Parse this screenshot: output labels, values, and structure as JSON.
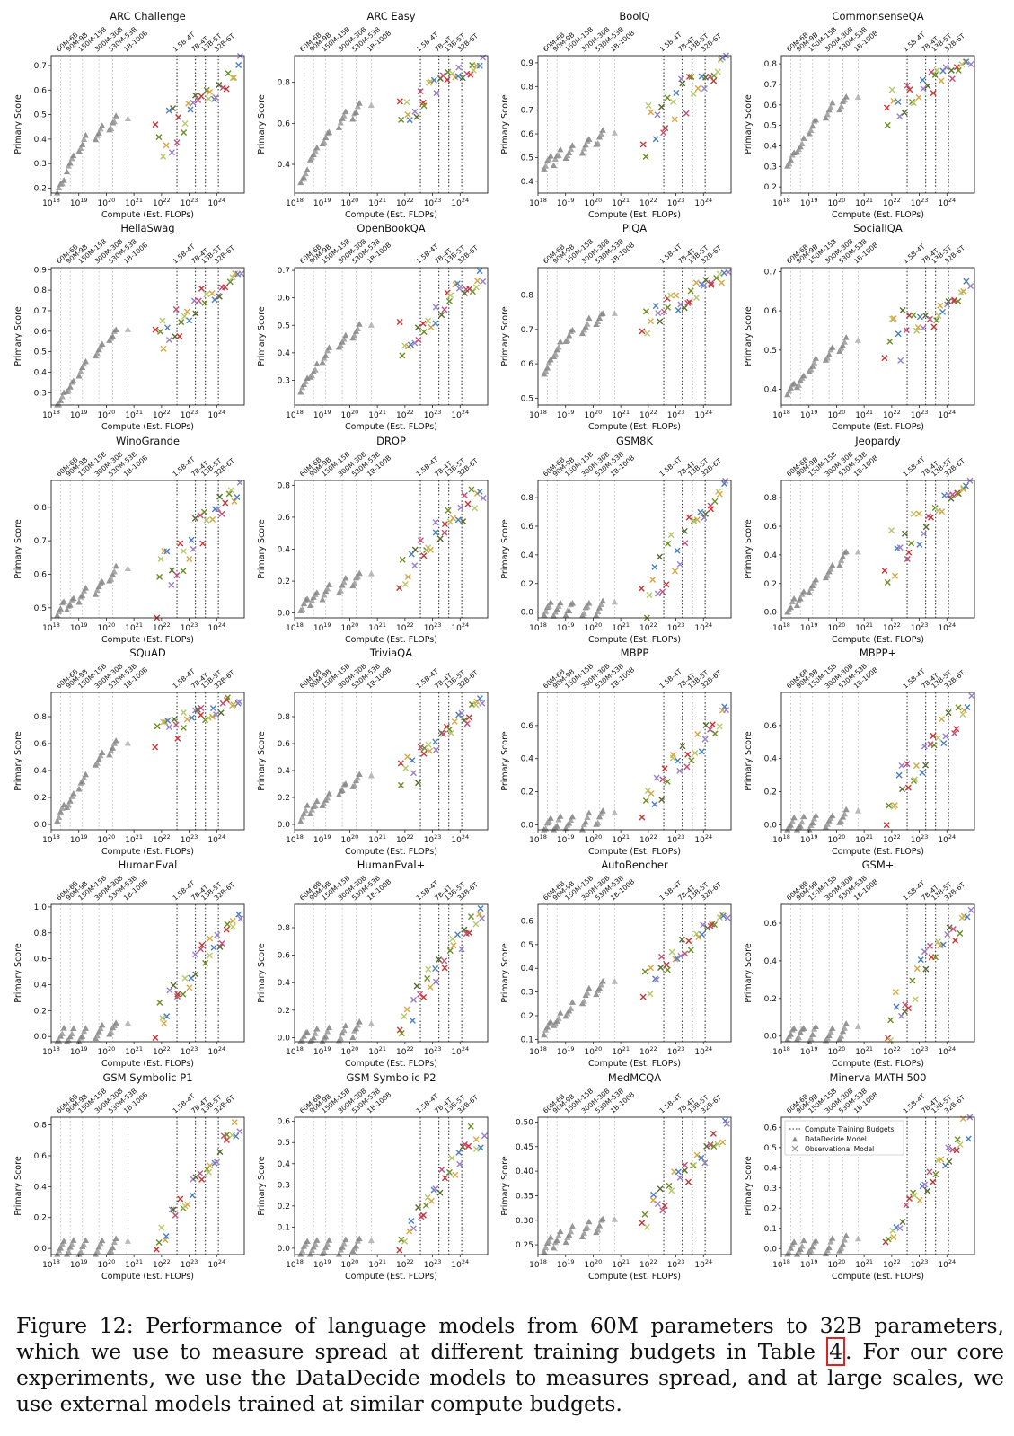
{
  "axis_text": {
    "xlabel": "Compute (Est. FLOPs)",
    "ylabel": "Primary Score",
    "x_ticks": [
      18,
      19,
      20,
      21,
      22,
      23,
      24
    ]
  },
  "budgets": [
    {
      "label": "60M-6B",
      "log_flops": 18.34
    },
    {
      "label": "90M-9B",
      "log_flops": 18.69
    },
    {
      "label": "150M-15B",
      "log_flops": 19.13
    },
    {
      "label": "300M-30B",
      "log_flops": 19.73
    },
    {
      "label": "530M-53B",
      "log_flops": 20.23
    },
    {
      "label": "1B-100B",
      "log_flops": 20.78
    },
    {
      "label": "1.5B-4T",
      "log_flops": 22.56
    },
    {
      "label": "7B-4T",
      "log_flops": 23.23
    },
    {
      "label": "13B-5T",
      "log_flops": 23.59
    },
    {
      "label": "32B-6T",
      "log_flops": 24.06
    }
  ],
  "legend": {
    "budget": "Compute Training Budgets",
    "datadecide": "DataDecide Model",
    "observational": "Observational Model"
  },
  "colors": {
    "datadecide": "#8a8a8a",
    "observational": [
      "#cc3333",
      "#6b8e23",
      "#b5c96a",
      "#d9a640",
      "#4a7fc0",
      "#9a7fc9",
      "#556b2f",
      "#c44e7a"
    ]
  },
  "chart_data": [
    {
      "type": "scatter",
      "title": "ARC Challenge",
      "xlim": [
        18,
        25
      ],
      "ylim": [
        0.18,
        0.74
      ],
      "yticks": [
        0.2,
        0.3,
        0.4,
        0.5,
        0.6,
        0.7
      ],
      "dd": [
        0.21,
        0.3,
        0.38,
        0.43,
        0.46
      ],
      "obs_start": [
        0.36,
        0.55
      ],
      "obs_end": [
        0.62,
        0.7
      ]
    },
    {
      "type": "scatter",
      "title": "ARC Easy",
      "xlim": [
        18,
        25
      ],
      "ylim": [
        0.26,
        0.93
      ],
      "yticks": [
        0.4,
        0.6,
        0.8
      ],
      "dd": [
        0.34,
        0.45,
        0.53,
        0.62,
        0.66
      ],
      "obs_start": [
        0.63,
        0.78
      ],
      "obs_end": [
        0.86,
        0.91
      ]
    },
    {
      "type": "scatter",
      "title": "BoolQ",
      "xlim": [
        18,
        25
      ],
      "ylim": [
        0.35,
        0.93
      ],
      "yticks": [
        0.4,
        0.5,
        0.6,
        0.7,
        0.8,
        0.9
      ],
      "dd": [
        0.48,
        0.5,
        0.52,
        0.55,
        0.58
      ],
      "obs_start": [
        0.58,
        0.82
      ],
      "obs_end": [
        0.86,
        0.91
      ]
    },
    {
      "type": "scatter",
      "title": "CommonsenseQA",
      "xlim": [
        18,
        25
      ],
      "ylim": [
        0.17,
        0.84
      ],
      "yticks": [
        0.2,
        0.3,
        0.4,
        0.5,
        0.6,
        0.7,
        0.8
      ],
      "dd": [
        0.33,
        0.4,
        0.5,
        0.57,
        0.61
      ],
      "obs_start": [
        0.58,
        0.76
      ],
      "obs_end": [
        0.76,
        0.8
      ]
    },
    {
      "type": "scatter",
      "title": "HellaSwag",
      "xlim": [
        18,
        25
      ],
      "ylim": [
        0.24,
        0.91
      ],
      "yticks": [
        0.3,
        0.4,
        0.5,
        0.6,
        0.7,
        0.8,
        0.9
      ],
      "dd": [
        0.26,
        0.33,
        0.42,
        0.51,
        0.58
      ],
      "obs_start": [
        0.52,
        0.74
      ],
      "obs_end": [
        0.85,
        0.89
      ]
    },
    {
      "type": "scatter",
      "title": "OpenBookQA",
      "xlim": [
        18,
        25
      ],
      "ylim": [
        0.21,
        0.71
      ],
      "yticks": [
        0.3,
        0.4,
        0.5,
        0.6,
        0.7
      ],
      "dd": [
        0.28,
        0.33,
        0.39,
        0.44,
        0.48
      ],
      "obs_start": [
        0.44,
        0.57
      ],
      "obs_end": [
        0.63,
        0.68
      ]
    },
    {
      "type": "scatter",
      "title": "PIQA",
      "xlim": [
        18,
        25
      ],
      "ylim": [
        0.48,
        0.88
      ],
      "yticks": [
        0.5,
        0.6,
        0.7,
        0.8
      ],
      "dd": [
        0.59,
        0.64,
        0.68,
        0.71,
        0.73
      ],
      "obs_start": [
        0.7,
        0.79
      ],
      "obs_end": [
        0.83,
        0.86
      ]
    },
    {
      "type": "scatter",
      "title": "SocialIQA",
      "xlim": [
        18,
        25
      ],
      "ylim": [
        0.36,
        0.71
      ],
      "yticks": [
        0.4,
        0.5,
        0.6,
        0.7
      ],
      "dd": [
        0.4,
        0.42,
        0.46,
        0.49,
        0.51
      ],
      "obs_start": [
        0.5,
        0.62
      ],
      "obs_end": [
        0.62,
        0.66
      ]
    },
    {
      "type": "scatter",
      "title": "WinoGrande",
      "xlim": [
        18,
        25
      ],
      "ylim": [
        0.47,
        0.88
      ],
      "yticks": [
        0.5,
        0.6,
        0.7,
        0.8
      ],
      "dd": [
        0.5,
        0.51,
        0.54,
        0.56,
        0.6
      ],
      "obs_start": [
        0.56,
        0.72
      ],
      "obs_end": [
        0.82,
        0.86
      ]
    },
    {
      "type": "scatter",
      "title": "DROP",
      "xlim": [
        18,
        25
      ],
      "ylim": [
        -0.03,
        0.83
      ],
      "yticks": [
        0.0,
        0.2,
        0.4,
        0.6,
        0.8
      ],
      "dd": [
        0.05,
        0.09,
        0.13,
        0.17,
        0.21
      ],
      "obs_start": [
        0.2,
        0.38
      ],
      "obs_end": [
        0.62,
        0.78
      ]
    },
    {
      "type": "scatter",
      "title": "GSM8K",
      "xlim": [
        18,
        25
      ],
      "ylim": [
        -0.04,
        0.92
      ],
      "yticks": [
        0.0,
        0.2,
        0.4,
        0.6,
        0.8
      ],
      "dd": [
        0.02,
        0.02,
        0.02,
        0.02,
        0.03
      ],
      "obs_start": [
        0.05,
        0.42
      ],
      "obs_end": [
        0.8,
        0.88
      ]
    },
    {
      "type": "scatter",
      "title": "Jeopardy",
      "xlim": [
        18,
        25
      ],
      "ylim": [
        -0.04,
        0.92
      ],
      "yticks": [
        0.0,
        0.2,
        0.4,
        0.6,
        0.8
      ],
      "dd": [
        0.04,
        0.1,
        0.18,
        0.28,
        0.38
      ],
      "obs_start": [
        0.3,
        0.7
      ],
      "obs_end": [
        0.86,
        0.9
      ]
    },
    {
      "type": "scatter",
      "title": "SQuAD",
      "xlim": [
        18,
        25
      ],
      "ylim": [
        -0.04,
        0.98
      ],
      "yticks": [
        0.0,
        0.2,
        0.4,
        0.6,
        0.8
      ],
      "dd": [
        0.08,
        0.18,
        0.32,
        0.48,
        0.56
      ],
      "obs_start": [
        0.62,
        0.82
      ],
      "obs_end": [
        0.88,
        0.94
      ]
    },
    {
      "type": "scatter",
      "title": "TriviaQA",
      "xlim": [
        18,
        25
      ],
      "ylim": [
        -0.04,
        0.98
      ],
      "yticks": [
        0.0,
        0.2,
        0.4,
        0.6,
        0.8
      ],
      "dd": [
        0.08,
        0.12,
        0.18,
        0.26,
        0.32
      ],
      "obs_start": [
        0.3,
        0.62
      ],
      "obs_end": [
        0.84,
        0.92
      ]
    },
    {
      "type": "scatter",
      "title": "MBPP",
      "xlim": [
        18,
        25
      ],
      "ylim": [
        -0.03,
        0.8
      ],
      "yticks": [
        0.0,
        0.2,
        0.4,
        0.6
      ],
      "dd": [
        0.0,
        0.0,
        0.01,
        0.02,
        0.04
      ],
      "obs_start": [
        0.05,
        0.22
      ],
      "obs_end": [
        0.55,
        0.7
      ]
    },
    {
      "type": "scatter",
      "title": "MBPP+",
      "xlim": [
        18,
        25
      ],
      "ylim": [
        -0.03,
        0.8
      ],
      "yticks": [
        0.0,
        0.2,
        0.4,
        0.6
      ],
      "dd": [
        0.0,
        0.0,
        0.01,
        0.02,
        0.05
      ],
      "obs_start": [
        0.1,
        0.3
      ],
      "obs_end": [
        0.6,
        0.75
      ]
    },
    {
      "type": "scatter",
      "title": "HumanEval",
      "xlim": [
        18,
        25
      ],
      "ylim": [
        -0.04,
        1.02
      ],
      "yticks": [
        0.0,
        0.2,
        0.4,
        0.6,
        0.8,
        1.0
      ],
      "dd": [
        0.0,
        0.0,
        0.01,
        0.03,
        0.06
      ],
      "obs_start": [
        0.1,
        0.35
      ],
      "obs_end": [
        0.82,
        0.95
      ]
    },
    {
      "type": "scatter",
      "title": "HumanEval+",
      "xlim": [
        18,
        25
      ],
      "ylim": [
        -0.03,
        0.97
      ],
      "yticks": [
        0.0,
        0.2,
        0.4,
        0.6,
        0.8
      ],
      "dd": [
        0.0,
        0.0,
        0.01,
        0.03,
        0.06
      ],
      "obs_start": [
        0.08,
        0.3
      ],
      "obs_end": [
        0.8,
        0.92
      ]
    },
    {
      "type": "scatter",
      "title": "AutoBencher",
      "xlim": [
        18,
        25
      ],
      "ylim": [
        0.09,
        0.67
      ],
      "yticks": [
        0.1,
        0.2,
        0.3,
        0.4,
        0.5,
        0.6
      ],
      "dd": [
        0.15,
        0.18,
        0.22,
        0.28,
        0.32
      ],
      "obs_start": [
        0.3,
        0.42
      ],
      "obs_end": [
        0.58,
        0.64
      ]
    },
    {
      "type": "scatter",
      "title": "GSM+",
      "xlim": [
        18,
        25
      ],
      "ylim": [
        -0.03,
        0.7
      ],
      "yticks": [
        0.0,
        0.2,
        0.4,
        0.6
      ],
      "dd": [
        0.01,
        0.01,
        0.01,
        0.01,
        0.02
      ],
      "obs_start": [
        0.03,
        0.25
      ],
      "obs_end": [
        0.55,
        0.68
      ]
    },
    {
      "type": "scatter",
      "title": "GSM Symbolic P1",
      "xlim": [
        18,
        25
      ],
      "ylim": [
        -0.04,
        0.85
      ],
      "yticks": [
        0.0,
        0.2,
        0.4,
        0.6,
        0.8
      ],
      "dd": [
        0.0,
        0.0,
        0.0,
        0.0,
        0.01
      ],
      "obs_start": [
        0.0,
        0.12
      ],
      "obs_end": [
        0.65,
        0.8
      ]
    },
    {
      "type": "scatter",
      "title": "GSM Symbolic P2",
      "xlim": [
        18,
        25
      ],
      "ylim": [
        -0.03,
        0.62
      ],
      "yticks": [
        0.0,
        0.1,
        0.2,
        0.3,
        0.4,
        0.5,
        0.6
      ],
      "dd": [
        0.0,
        0.0,
        0.0,
        0.0,
        0.01
      ],
      "obs_start": [
        0.0,
        0.05
      ],
      "obs_end": [
        0.4,
        0.58
      ]
    },
    {
      "type": "scatter",
      "title": "MedMCQA",
      "xlim": [
        18,
        25
      ],
      "ylim": [
        0.23,
        0.51
      ],
      "yticks": [
        0.25,
        0.3,
        0.35,
        0.4,
        0.45,
        0.5
      ],
      "dd": [
        0.25,
        0.26,
        0.27,
        0.28,
        0.29
      ],
      "obs_start": [
        0.28,
        0.34
      ],
      "obs_end": [
        0.44,
        0.49
      ]
    },
    {
      "type": "scatter",
      "title": "Minerva MATH 500",
      "xlim": [
        18,
        25
      ],
      "ylim": [
        -0.03,
        0.65
      ],
      "yticks": [
        0.0,
        0.1,
        0.2,
        0.3,
        0.4,
        0.5,
        0.6
      ],
      "dd": [
        0.0,
        0.0,
        0.01,
        0.01,
        0.02
      ],
      "obs_start": [
        0.01,
        0.08
      ],
      "obs_end": [
        0.45,
        0.62
      ],
      "legend": true
    }
  ],
  "caption": {
    "before_ref": "Figure 12: Performance of language models from 60M parameters to 32B parameters, which we use to measure spread at different training budgets in Table ",
    "ref": "4",
    "after_ref": ". For our core experiments, we use the DataDecide models to measures spread, and at large scales, we use external models trained at similar compute budgets."
  }
}
